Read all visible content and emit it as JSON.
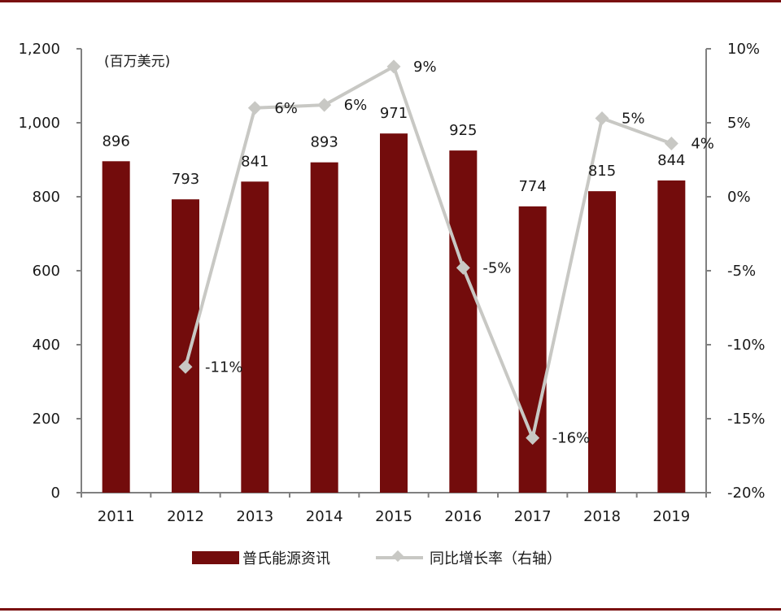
{
  "chart_data": {
    "type": "bar",
    "categories": [
      "2011",
      "2012",
      "2013",
      "2014",
      "2015",
      "2016",
      "2017",
      "2018",
      "2019"
    ],
    "series": [
      {
        "name": "普氏能源资讯",
        "type": "bar",
        "axis": "left",
        "color": "#730c0c",
        "values": [
          896,
          793,
          841,
          893,
          971,
          925,
          774,
          815,
          844
        ],
        "labels": [
          "896",
          "793",
          "841",
          "893",
          "971",
          "925",
          "774",
          "815",
          "844"
        ]
      },
      {
        "name": "同比增长率（右轴）",
        "type": "line",
        "axis": "right",
        "color": "#c8c8c4",
        "values": [
          null,
          -11.5,
          6,
          6.2,
          8.8,
          -4.8,
          -16.3,
          5.3,
          3.6
        ],
        "labels": [
          null,
          "-11%",
          "6%",
          "6%",
          "9%",
          "-5%",
          "-16%",
          "5%",
          "4%"
        ]
      }
    ],
    "left_axis": {
      "unit_label": "(百万美元)",
      "ylim": [
        0,
        1200
      ],
      "ticks": [
        "0",
        "200",
        "400",
        "600",
        "800",
        "1,000",
        "1,200"
      ]
    },
    "right_axis": {
      "ylim": [
        -20,
        10
      ],
      "ticks": [
        "-20%",
        "-15%",
        "-10%",
        "-5%",
        "0%",
        "5%",
        "10%"
      ]
    },
    "grid": false,
    "legend_position": "bottom"
  }
}
